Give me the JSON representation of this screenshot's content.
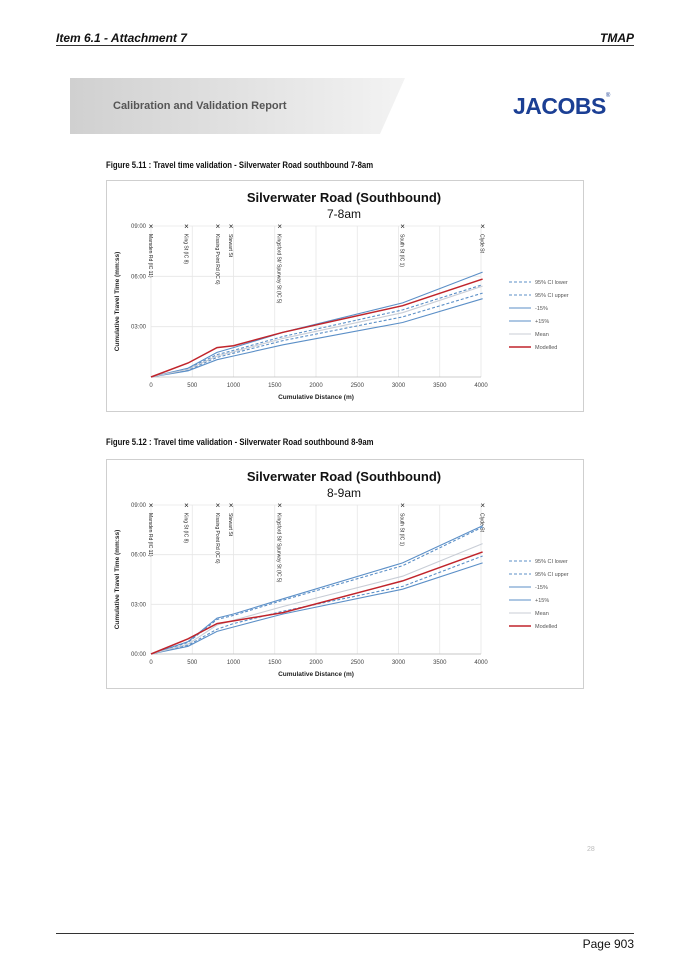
{
  "header": {
    "left": "Item 6.1 - Attachment 7",
    "right": "TMAP"
  },
  "banner": {
    "title": "Calibration and Validation Report"
  },
  "logo": {
    "text": "JACOBS",
    "mark": "®",
    "color": "#1b3f94"
  },
  "figures": [
    {
      "caption": "Figure 5.11 : Travel time validation - Silverwater Road southbound 7-8am"
    },
    {
      "caption": "Figure 5.12 : Travel time validation - Silverwater Road southbound 8-9am"
    }
  ],
  "chart_data": [
    {
      "type": "line",
      "title": "Silverwater Road (Southbound)",
      "subtitle": "7-8am",
      "xlabel": "Cumulative Distance (m)",
      "ylabel": "Cumulative Travel Time (mm:ss)",
      "xlim": [
        0,
        4000
      ],
      "ylim_seconds": [
        0,
        540
      ],
      "x_ticks": [
        0,
        500,
        1000,
        1500,
        2000,
        2500,
        3000,
        3500,
        4000
      ],
      "y_ticks": [
        "03:00",
        "06:00",
        "09:00"
      ],
      "grid": true,
      "legend_position": "right",
      "intersections": [
        {
          "x": 0,
          "label": "Marsden Rd (IC 11)"
        },
        {
          "x": 430,
          "label": "King St (IC 8)"
        },
        {
          "x": 810,
          "label": "Kissing Point Rd (IC 6)"
        },
        {
          "x": 970,
          "label": "Stewart St"
        },
        {
          "x": 1560,
          "label": "Kingsford St/ Spurway St (IC 5)"
        },
        {
          "x": 3050,
          "label": "South St (IC 1)"
        },
        {
          "x": 4020,
          "label": "Clyde St"
        }
      ],
      "series": [
        {
          "name": "95% CI lower",
          "color": "#5b8fc7",
          "dash": true,
          "x": [
            0,
            450,
            800,
            1000,
            1600,
            3050,
            4020
          ],
          "y": [
            0,
            25,
            70,
            85,
            130,
            215,
            300
          ]
        },
        {
          "name": "95% CI upper",
          "color": "#5b8fc7",
          "dash": true,
          "x": [
            0,
            450,
            800,
            1000,
            1600,
            3050,
            4020
          ],
          "y": [
            0,
            30,
            80,
            95,
            145,
            240,
            330
          ]
        },
        {
          "name": "-15%",
          "color": "#5b8fc7",
          "dash": false,
          "x": [
            0,
            450,
            800,
            1000,
            1600,
            3050,
            4020
          ],
          "y": [
            0,
            22,
            62,
            75,
            115,
            195,
            280
          ]
        },
        {
          "name": "+15%",
          "color": "#5b8fc7",
          "dash": false,
          "x": [
            0,
            450,
            800,
            1000,
            1600,
            3050,
            4020
          ],
          "y": [
            0,
            32,
            88,
            105,
            160,
            265,
            375
          ]
        },
        {
          "name": "Mean",
          "color": "#c8cdd6",
          "dash": false,
          "x": [
            0,
            450,
            800,
            1000,
            1600,
            3050,
            4020
          ],
          "y": [
            0,
            27,
            75,
            90,
            138,
            230,
            325
          ]
        },
        {
          "name": "Modelled",
          "color": "#c0242b",
          "dash": false,
          "x": [
            0,
            450,
            800,
            1000,
            1600,
            3050,
            4020
          ],
          "y": [
            0,
            50,
            105,
            112,
            160,
            255,
            350
          ]
        }
      ]
    },
    {
      "type": "line",
      "title": "Silverwater Road (Southbound)",
      "subtitle": "8-9am",
      "xlabel": "Cumulative Distance (m)",
      "ylabel": "Cumulative Travel Time (mm:ss)",
      "xlim": [
        0,
        4000
      ],
      "ylim_seconds": [
        0,
        540
      ],
      "x_ticks": [
        0,
        500,
        1000,
        1500,
        2000,
        2500,
        3000,
        3500,
        4000
      ],
      "y_ticks": [
        "00:00",
        "03:00",
        "06:00",
        "09:00"
      ],
      "grid": true,
      "legend_position": "right",
      "intersections": [
        {
          "x": 0,
          "label": "Marsden Rd (IC 11)"
        },
        {
          "x": 430,
          "label": "King St (IC 8)"
        },
        {
          "x": 810,
          "label": "Kissing Point Rd (IC 6)"
        },
        {
          "x": 970,
          "label": "Stewart St"
        },
        {
          "x": 1560,
          "label": "Kingsford St/ Spurway St (IC 5)"
        },
        {
          "x": 3050,
          "label": "South St (IC 1)"
        },
        {
          "x": 4020,
          "label": "Clyde St"
        }
      ],
      "series": [
        {
          "name": "95% CI lower",
          "color": "#5b8fc7",
          "dash": true,
          "x": [
            0,
            450,
            800,
            1000,
            1600,
            3050,
            4020
          ],
          "y": [
            0,
            32,
            90,
            110,
            155,
            245,
            355
          ]
        },
        {
          "name": "95% CI upper",
          "color": "#5b8fc7",
          "dash": true,
          "x": [
            0,
            450,
            800,
            1000,
            1600,
            3050,
            4020
          ],
          "y": [
            0,
            42,
            125,
            140,
            195,
            320,
            460
          ]
        },
        {
          "name": "-15%",
          "color": "#5b8fc7",
          "dash": false,
          "x": [
            0,
            450,
            800,
            1000,
            1600,
            3050,
            4020
          ],
          "y": [
            0,
            28,
            82,
            98,
            145,
            235,
            330
          ]
        },
        {
          "name": "+15%",
          "color": "#5b8fc7",
          "dash": false,
          "x": [
            0,
            450,
            800,
            1000,
            1600,
            3050,
            4020
          ],
          "y": [
            0,
            45,
            130,
            145,
            200,
            330,
            465
          ]
        },
        {
          "name": "Mean",
          "color": "#c8cdd6",
          "dash": false,
          "x": [
            0,
            450,
            800,
            1000,
            1600,
            3050,
            4020
          ],
          "y": [
            0,
            36,
            105,
            122,
            172,
            282,
            400
          ]
        },
        {
          "name": "Modelled",
          "color": "#c0242b",
          "dash": false,
          "x": [
            0,
            450,
            800,
            1000,
            1600,
            3050,
            4020
          ],
          "y": [
            0,
            55,
            110,
            120,
            150,
            265,
            370
          ]
        }
      ]
    }
  ],
  "page_corner_number": "28",
  "footer": {
    "page": "Page 903"
  }
}
